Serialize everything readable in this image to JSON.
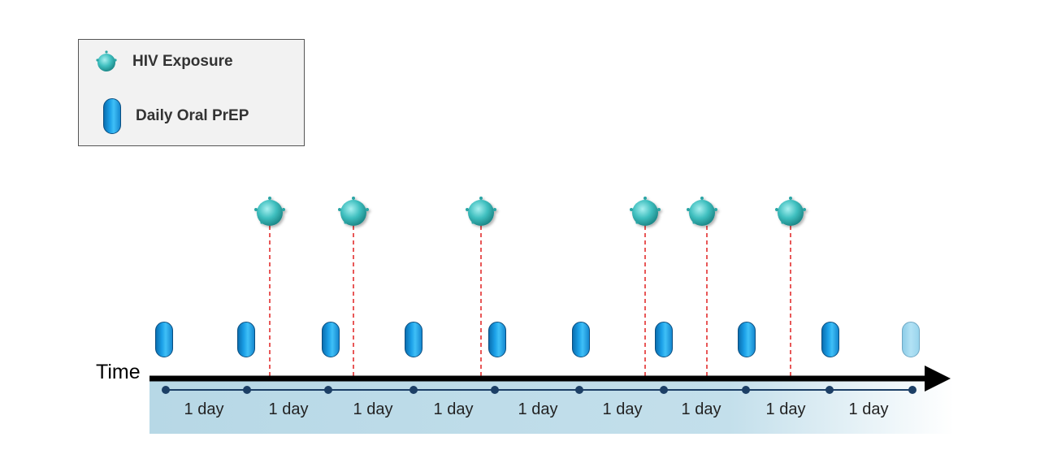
{
  "legend": {
    "items": [
      {
        "icon": "virus-icon",
        "label": "HIV Exposure"
      },
      {
        "icon": "pill-icon",
        "label": "Daily Oral PrEP"
      }
    ]
  },
  "timeline": {
    "axis_label": "Time",
    "interval_label": "1 day",
    "interval_count": 9,
    "day_ticks": 10,
    "pill_count": 10,
    "last_pill_state": "faded",
    "exposure_count": 6
  },
  "colors": {
    "axis": "#000000",
    "exposure_line": "#e02020",
    "day_line": "#1c3f66",
    "band_start": "#b7d8e6",
    "virus": "#3fbfbf",
    "pill": "#1a9ee6"
  }
}
